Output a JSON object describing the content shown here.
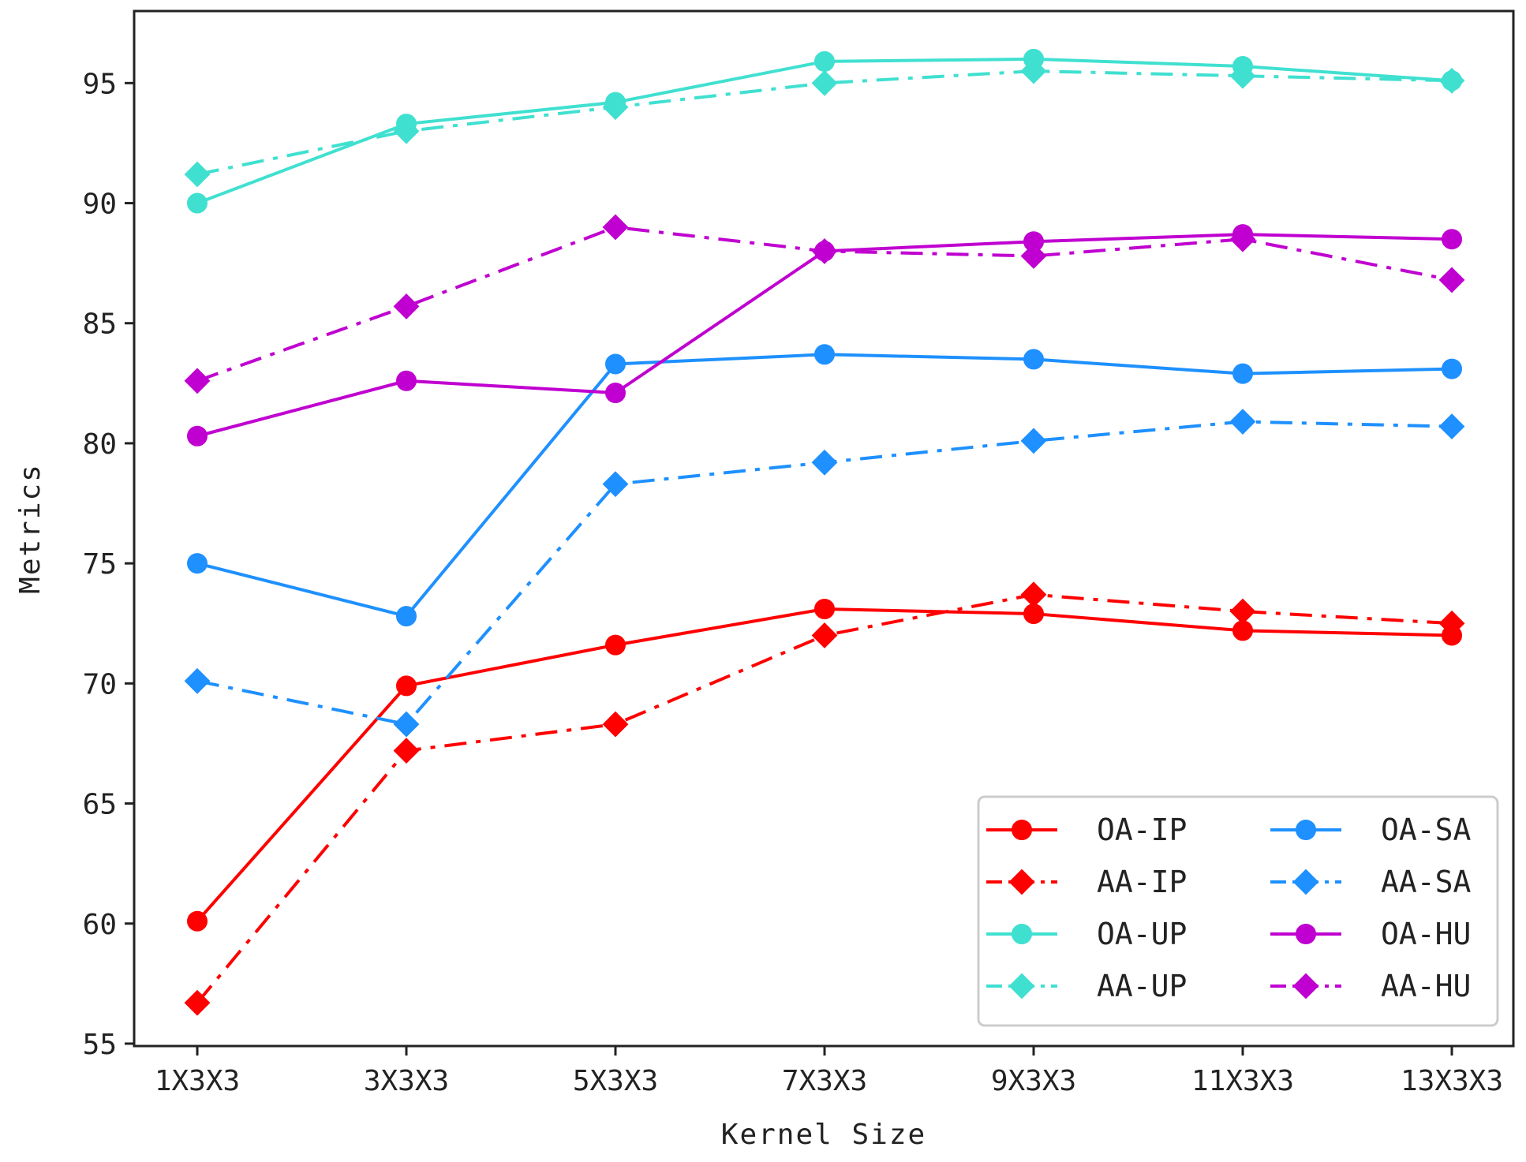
{
  "chart_data": {
    "type": "line",
    "title": "",
    "xlabel": "Kernel Size",
    "ylabel": "Metrics",
    "categories": [
      "1X3X3",
      "3X3X3",
      "5X3X3",
      "7X3X3",
      "9X3X3",
      "11X3X3",
      "13X3X3"
    ],
    "yticks": [
      "55",
      "60",
      "65",
      "70",
      "75",
      "80",
      "85",
      "90",
      "95"
    ],
    "ylim": [
      54.9,
      98.0
    ],
    "grid": false,
    "legend_position": "lower-right",
    "legend_columns": 2,
    "series": [
      {
        "name": "OA-IP",
        "color": "#ff0000",
        "style": "solid",
        "marker": "circle",
        "values": [
          60.1,
          69.9,
          71.6,
          73.1,
          72.9,
          72.2,
          72.0
        ]
      },
      {
        "name": "AA-IP",
        "color": "#ff0000",
        "style": "dashdot",
        "marker": "diamond",
        "values": [
          56.7,
          67.2,
          68.3,
          72.0,
          73.7,
          73.0,
          72.5
        ]
      },
      {
        "name": "OA-UP",
        "color": "#40e0d0",
        "style": "solid",
        "marker": "circle",
        "values": [
          90.0,
          93.3,
          94.2,
          95.9,
          96.0,
          95.7,
          95.1
        ]
      },
      {
        "name": "AA-UP",
        "color": "#40e0d0",
        "style": "dashdot",
        "marker": "diamond",
        "values": [
          91.2,
          93.0,
          94.0,
          95.0,
          95.5,
          95.3,
          95.1
        ]
      },
      {
        "name": "OA-SA",
        "color": "#1e90ff",
        "style": "solid",
        "marker": "circle",
        "values": [
          75.0,
          72.8,
          83.3,
          83.7,
          83.5,
          82.9,
          83.1
        ]
      },
      {
        "name": "AA-SA",
        "color": "#1e90ff",
        "style": "dashdot",
        "marker": "diamond",
        "values": [
          70.1,
          68.3,
          78.3,
          79.2,
          80.1,
          80.9,
          80.7
        ]
      },
      {
        "name": "OA-HU",
        "color": "#c000d0",
        "style": "solid",
        "marker": "circle",
        "values": [
          80.3,
          82.6,
          82.1,
          88.0,
          88.4,
          88.7,
          88.5
        ]
      },
      {
        "name": "AA-HU",
        "color": "#c000d0",
        "style": "dashdot",
        "marker": "diamond",
        "values": [
          82.6,
          85.7,
          89.0,
          88.0,
          87.8,
          88.5,
          86.8
        ]
      }
    ],
    "legend_order": [
      "OA-IP",
      "OA-SA",
      "AA-IP",
      "AA-SA",
      "OA-UP",
      "OA-HU",
      "AA-UP",
      "AA-HU"
    ]
  }
}
